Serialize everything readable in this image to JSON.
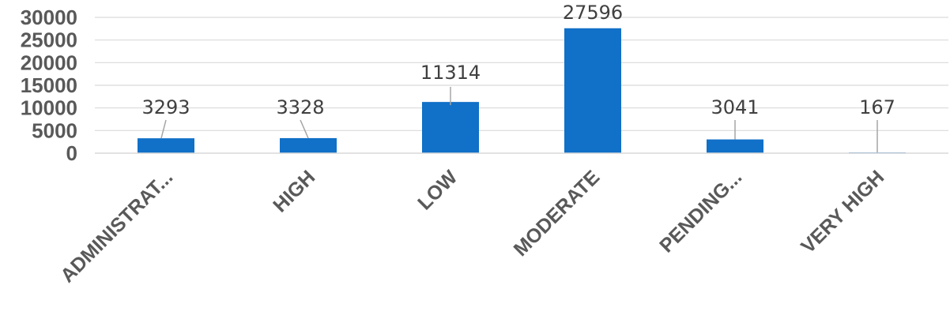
{
  "chart_data": {
    "type": "bar",
    "categories": [
      "ADMINISTRAT...",
      "HIGH",
      "LOW",
      "MODERATE",
      "PENDING...",
      "VERY HIGH"
    ],
    "values": [
      3293,
      3328,
      11314,
      27596,
      3041,
      167
    ],
    "data_labels": [
      "3293",
      "3328",
      "11314",
      "27596",
      "3041",
      "167"
    ],
    "yticks": [
      "0",
      "5000",
      "10000",
      "15000",
      "20000",
      "25000",
      "30000"
    ],
    "ylim": [
      0,
      30000
    ],
    "grid": true,
    "bar_color": "#1170c8",
    "title": "",
    "xlabel": "",
    "ylabel": ""
  }
}
